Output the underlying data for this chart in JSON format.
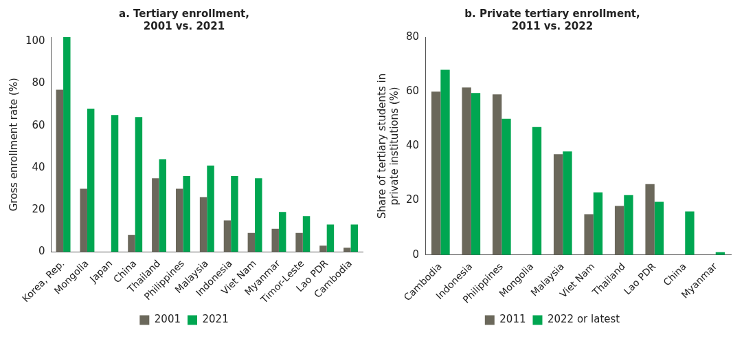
{
  "chart_data": [
    {
      "type": "bar",
      "title": "a. Tertiary enrollment,\n2001 vs. 2021",
      "ylabel": "Gross enrollment rate (%)",
      "categories": [
        "Korea, Rep.",
        "Mongolia",
        "Japan",
        "China",
        "Thailand",
        "Philippines",
        "Malaysia",
        "Indonesia",
        "Viet Nam",
        "Myanmar",
        "Timor-Leste",
        "Lao PDR",
        "Cambodia"
      ],
      "series": [
        {
          "name": "2001",
          "color": "#6b685b",
          "values": [
            77,
            30,
            null,
            8,
            35,
            30,
            26,
            15,
            9,
            11,
            9,
            3,
            2
          ]
        },
        {
          "name": "2021",
          "color": "#00a651",
          "values": [
            102,
            68,
            65,
            64,
            44,
            36,
            41,
            36,
            35,
            19,
            17,
            13,
            13
          ]
        }
      ],
      "ylim": [
        0,
        102
      ],
      "yticks": [
        0,
        20,
        40,
        60,
        80,
        100
      ],
      "grid": false,
      "legend": "bottom"
    },
    {
      "type": "bar",
      "title": "b. Private tertiary enrollment,\n2011 vs. 2022",
      "ylabel": "Share of tertiary students in\nprivate institutions (%)",
      "categories": [
        "Cambodia",
        "Indonesia",
        "Philippines",
        "Mongolia",
        "Malaysia",
        "Viet Nam",
        "Thailand",
        "Lao PDR",
        "China",
        "Myanmar"
      ],
      "series": [
        {
          "name": "2011",
          "color": "#6b685b",
          "values": [
            60,
            61.5,
            59,
            null,
            37,
            15,
            18,
            26,
            null,
            null
          ]
        },
        {
          "name": "2022 or latest",
          "color": "#00a651",
          "values": [
            68,
            59.5,
            50,
            47,
            38,
            23,
            22,
            19.5,
            16,
            1
          ]
        }
      ],
      "ylim": [
        0,
        80
      ],
      "yticks": [
        0,
        20,
        40,
        60,
        80
      ],
      "grid": false,
      "legend": "bottom"
    }
  ]
}
